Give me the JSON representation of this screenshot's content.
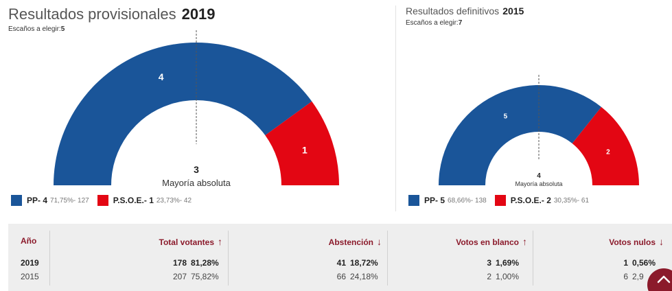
{
  "provisional": {
    "title": "Resultados provisionales",
    "year": "2019",
    "seats_label": "Escaños a elegir:",
    "seats_value": "5",
    "majority_number": "3",
    "majority_label": "Mayoría absoluta",
    "parties": [
      {
        "name": "PP",
        "seats": 4,
        "detail": "71,75%- 127",
        "legend": "PP- 4",
        "color": "#1a5599"
      },
      {
        "name": "P.S.O.E.",
        "seats": 1,
        "detail": "23,73%- 42",
        "legend": "P.S.O.E.- 1",
        "color": "#e30613"
      }
    ]
  },
  "definitive": {
    "title": "Resultados definitivos",
    "year": "2015",
    "seats_label": "Escaños a elegir:",
    "seats_value": "7",
    "majority_number": "4",
    "majority_label": "Mayoría absoluta",
    "parties": [
      {
        "name": "PP",
        "seats": 5,
        "detail": "68,66%- 138",
        "legend": "PP- 5",
        "color": "#1a5599"
      },
      {
        "name": "P.S.O.E.",
        "seats": 2,
        "detail": "30,35%- 61",
        "legend": "P.S.O.E.- 2",
        "color": "#e30613"
      }
    ]
  },
  "table": {
    "headers": {
      "year": "Año",
      "total": "Total votantes",
      "abstention": "Abstención",
      "blank": "Votos en blanco",
      "null": "Votos nulos"
    },
    "trends": {
      "total": "up",
      "abstention": "down",
      "blank": "up",
      "null": "down"
    },
    "rows": [
      {
        "year": "2019",
        "total": "178",
        "total_pct": "81,28%",
        "abstention": "41",
        "abstention_pct": "18,72%",
        "blank": "3",
        "blank_pct": "1,69%",
        "null": "1",
        "null_pct": "0,56%"
      },
      {
        "year": "2015",
        "total": "207",
        "total_pct": "75,82%",
        "abstention": "66",
        "abstention_pct": "24,18%",
        "blank": "2",
        "blank_pct": "1,00%",
        "null": "6",
        "null_pct": "2,9"
      }
    ]
  },
  "colors": {
    "accent": "#8b1a2b",
    "pp": "#1a5599",
    "psoe": "#e30613",
    "table_bg": "#eeeeee"
  },
  "icons": {
    "scroll_top": "chevron-up-icon",
    "trend_up": "arrow-up-icon",
    "trend_down": "arrow-down-icon"
  }
}
